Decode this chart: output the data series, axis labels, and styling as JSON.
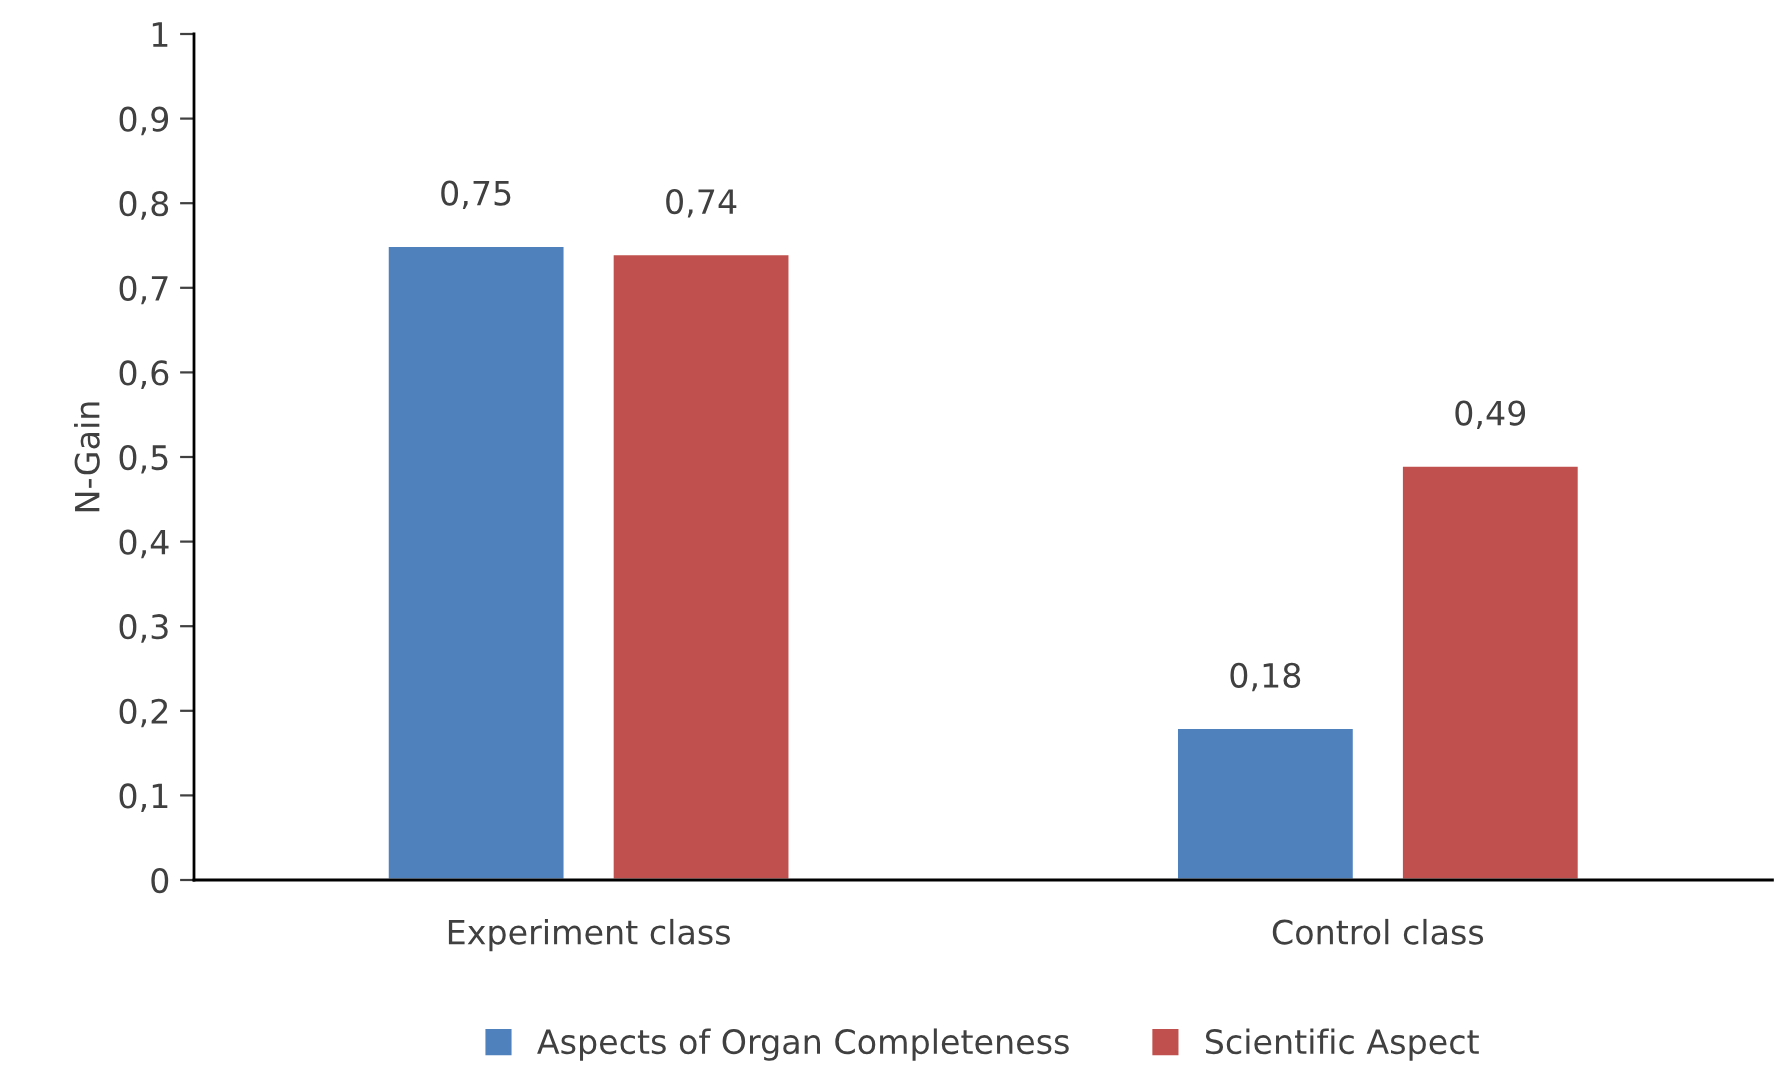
{
  "chart_data": {
    "type": "bar",
    "ylabel": "N-Gain",
    "categories": [
      "Experiment class",
      "Control class"
    ],
    "series": [
      {
        "name": "Aspects of Organ Completeness",
        "color": "#4f81bd",
        "values": [
          0.75,
          0.18
        ],
        "value_labels": [
          "0,75",
          "0,18"
        ]
      },
      {
        "name": "Scientific Aspect",
        "color": "#c0504d",
        "values": [
          0.74,
          0.49
        ],
        "value_labels": [
          "0,74",
          "0,49"
        ]
      }
    ],
    "ylim": [
      0,
      1
    ],
    "yticks": [
      0,
      {
        "value": 0.1,
        "label": "0,1"
      },
      {
        "value": 0.2,
        "label": "0,2"
      },
      {
        "value": 0.3,
        "label": "0,3"
      },
      {
        "value": 0.4,
        "label": "0,4"
      },
      {
        "value": 0.5,
        "label": "0,5"
      },
      {
        "value": 0.6,
        "label": "0,6"
      },
      {
        "value": 0.7,
        "label": "0,7"
      },
      {
        "value": 0.8,
        "label": "0,8"
      },
      {
        "value": 0.9,
        "label": "0,9"
      },
      1
    ],
    "grid": false,
    "legend": "bottom"
  }
}
